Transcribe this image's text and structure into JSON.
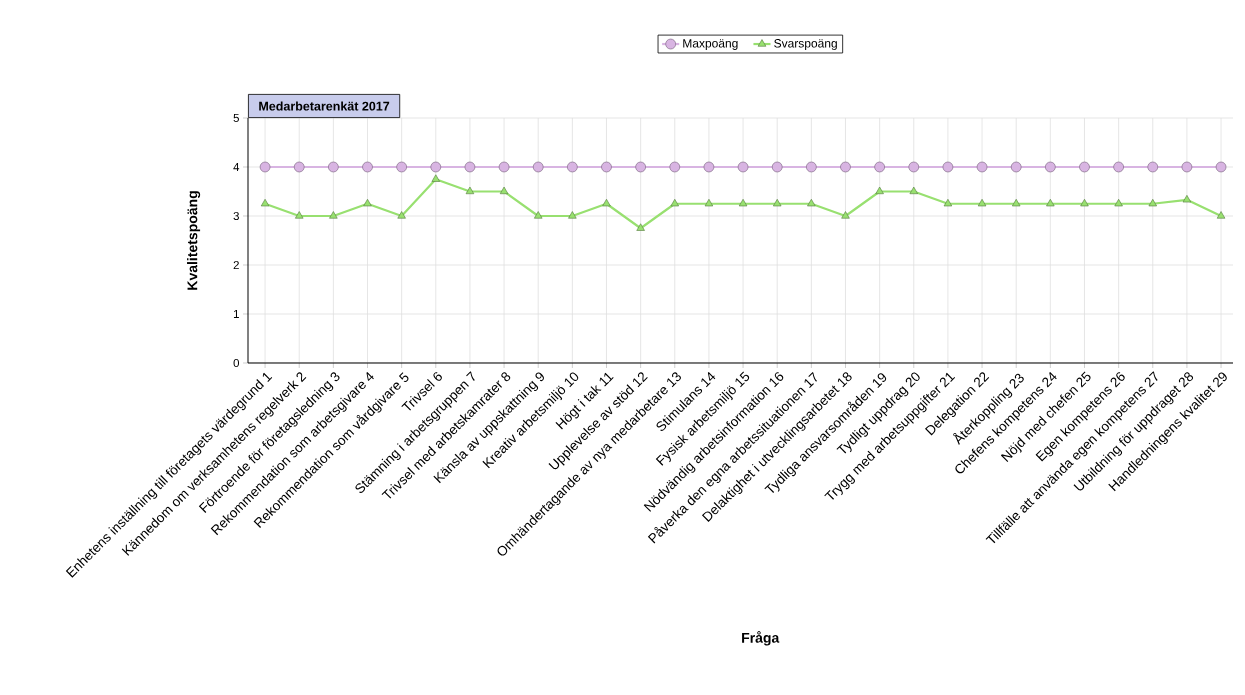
{
  "chart_data": {
    "type": "line",
    "title": "Medarbetarenkät 2017",
    "xlabel": "Fråga",
    "ylabel": "Kvalitetspoäng",
    "categories": [
      "Enhetens inställning till företagets värdegrund 1",
      "Kännedom om verksamhetens regelverk 2",
      "Förtroende för företagsledning 3",
      "Rekommendation som arbetsgivare 4",
      "Rekommendation som vårdgivare 5",
      "Trivsel 6",
      "Stämning i arbetsgruppen 7",
      "Trivsel med arbetskamrater 8",
      "Känsla av uppskattning 9",
      "Kreativ arbetsmiljö 10",
      "Högt i tak 11",
      "Upplevelse av stöd 12",
      "Omhändertagande av nya medarbetare 13",
      "Stimulans 14",
      "Fysisk arbetsmiljö 15",
      "Nödvändig arbetsinformation 16",
      "Påverka den egna arbetssituationen 17",
      "Delaktighet i utvecklingsarbetet 18",
      "Tydliga ansvarsområden 19",
      "Tydligt uppdrag 20",
      "Trygg med arbetsuppgifter 21",
      "Delegation 22",
      "Återkoppling 23",
      "Chefens kompetens 24",
      "Nöjd med chefen 25",
      "Egen kompetens 26",
      "Tillfälle att använda egen kompetens 27",
      "Utbildning för uppdraget 28",
      "Handledningens kvalitet 29"
    ],
    "series": [
      {
        "name": "Maxpoäng",
        "color": "#d8b4e2",
        "marker": "circle",
        "values": [
          4,
          4,
          4,
          4,
          4,
          4,
          4,
          4,
          4,
          4,
          4,
          4,
          4,
          4,
          4,
          4,
          4,
          4,
          4,
          4,
          4,
          4,
          4,
          4,
          4,
          4,
          4,
          4,
          4
        ]
      },
      {
        "name": "Svarspoäng",
        "color": "#98e070",
        "marker": "triangle",
        "values": [
          3.25,
          3,
          3,
          3.25,
          3,
          3.75,
          3.5,
          3.5,
          3,
          3,
          3.25,
          2.75,
          3.25,
          3.25,
          3.25,
          3.25,
          3.25,
          3,
          3.5,
          3.5,
          3.25,
          3.25,
          3.25,
          3.25,
          3.25,
          3.25,
          3.25,
          3.33,
          3
        ]
      }
    ],
    "ylim": [
      0,
      5
    ],
    "yticks": [
      0,
      1,
      2,
      3,
      4,
      5
    ],
    "grid": true,
    "legend": "top"
  }
}
